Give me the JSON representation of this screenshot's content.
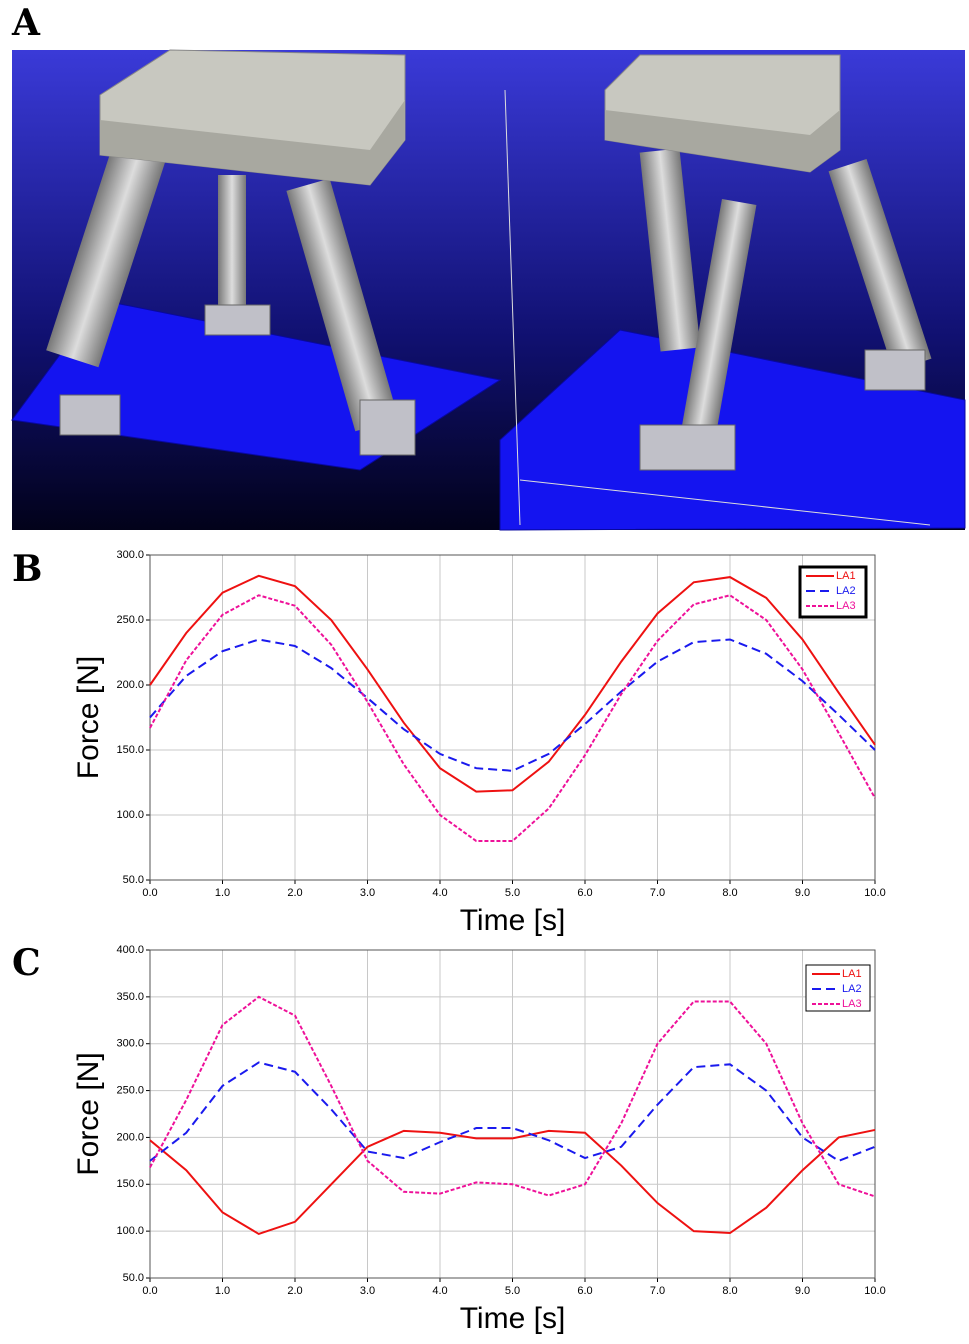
{
  "panel_labels": [
    "A",
    "B",
    "C"
  ],
  "chart_data": [
    {
      "type": "line",
      "ylabel": "Force [N]",
      "xlabel": "Time [s]",
      "x": [
        0,
        0.5,
        1,
        1.5,
        2,
        2.5,
        3,
        3.5,
        4,
        4.5,
        5,
        5.5,
        6,
        6.5,
        7,
        7.5,
        8,
        8.5,
        9,
        9.5,
        10
      ],
      "series": [
        {
          "name": "LA1",
          "color": "#ee1111",
          "style": "solid",
          "values": [
            200,
            240,
            271,
            284,
            276,
            250,
            212,
            171,
            136,
            118,
            119,
            141,
            177,
            218,
            255,
            279,
            283,
            267,
            235,
            194,
            154
          ]
        },
        {
          "name": "LA2",
          "color": "#1a1aee",
          "style": "dashed",
          "values": [
            175,
            207,
            226,
            235,
            230,
            213,
            190,
            166,
            147,
            136,
            134,
            147,
            170,
            195,
            218,
            233,
            235,
            224,
            203,
            177,
            150
          ]
        },
        {
          "name": "LA3",
          "color": "#ee1199",
          "style": "dotted",
          "values": [
            167,
            219,
            254,
            269,
            261,
            231,
            187,
            139,
            100,
            80,
            80,
            105,
            146,
            193,
            234,
            262,
            269,
            250,
            212,
            163,
            113
          ]
        }
      ],
      "xlim": [
        0,
        10
      ],
      "xticks": [
        {
          "value": 0,
          "label": "0.0"
        },
        {
          "value": 1,
          "label": "1.0"
        },
        {
          "value": 2,
          "label": "2.0"
        },
        {
          "value": 3,
          "label": "3.0"
        },
        {
          "value": 4,
          "label": "4.0"
        },
        {
          "value": 5,
          "label": "5.0"
        },
        {
          "value": 6,
          "label": "6.0"
        },
        {
          "value": 7,
          "label": "7.0"
        },
        {
          "value": 8,
          "label": "8.0"
        },
        {
          "value": 9,
          "label": "9.0"
        },
        {
          "value": 10,
          "label": "10.0"
        }
      ],
      "ylim": [
        50,
        300
      ],
      "yticks": [
        {
          "value": 50,
          "label": "50.0"
        },
        {
          "value": 100,
          "label": "100.0"
        },
        {
          "value": 150,
          "label": "150.0"
        },
        {
          "value": 200,
          "label": "200.0"
        },
        {
          "value": 250,
          "label": "250.0"
        },
        {
          "value": 300,
          "label": "300.0"
        }
      ],
      "grid": true,
      "legend": "upper right"
    },
    {
      "type": "line",
      "ylabel": "Force [N]",
      "xlabel": "Time [s]",
      "x": [
        0,
        0.5,
        1,
        1.5,
        2,
        2.5,
        3,
        3.5,
        4,
        4.5,
        5,
        5.5,
        6,
        6.5,
        7,
        7.5,
        8,
        8.5,
        9,
        9.5,
        10
      ],
      "series": [
        {
          "name": "LA1",
          "color": "#ee1111",
          "style": "solid",
          "values": [
            197,
            165,
            120,
            97,
            110,
            150,
            190,
            207,
            205,
            199,
            199,
            207,
            205,
            170,
            130,
            100,
            98,
            125,
            165,
            200,
            208
          ]
        },
        {
          "name": "LA2",
          "color": "#1a1aee",
          "style": "dashed",
          "values": [
            175,
            205,
            255,
            280,
            270,
            230,
            185,
            178,
            195,
            210,
            210,
            197,
            178,
            190,
            235,
            275,
            278,
            250,
            200,
            175,
            190
          ]
        },
        {
          "name": "LA3",
          "color": "#ee1199",
          "style": "dotted",
          "values": [
            168,
            240,
            320,
            350,
            330,
            255,
            175,
            142,
            140,
            152,
            150,
            138,
            150,
            215,
            300,
            345,
            345,
            300,
            215,
            150,
            137
          ]
        }
      ],
      "xlim": [
        0,
        10
      ],
      "xticks": [
        {
          "value": 0,
          "label": "0.0"
        },
        {
          "value": 1,
          "label": "1.0"
        },
        {
          "value": 2,
          "label": "2.0"
        },
        {
          "value": 3,
          "label": "3.0"
        },
        {
          "value": 4,
          "label": "4.0"
        },
        {
          "value": 5,
          "label": "5.0"
        },
        {
          "value": 6,
          "label": "6.0"
        },
        {
          "value": 7,
          "label": "7.0"
        },
        {
          "value": 8,
          "label": "8.0"
        },
        {
          "value": 9,
          "label": "9.0"
        },
        {
          "value": 10,
          "label": "10.0"
        }
      ],
      "ylim": [
        50,
        400
      ],
      "yticks": [
        {
          "value": 50,
          "label": "50.0"
        },
        {
          "value": 100,
          "label": "100.0"
        },
        {
          "value": 150,
          "label": "150.0"
        },
        {
          "value": 200,
          "label": "200.0"
        },
        {
          "value": 250,
          "label": "250.0"
        },
        {
          "value": 300,
          "label": "300.0"
        },
        {
          "value": 350,
          "label": "350.0"
        },
        {
          "value": 400,
          "label": "400.0"
        }
      ],
      "grid": true,
      "legend": "upper right"
    }
  ]
}
